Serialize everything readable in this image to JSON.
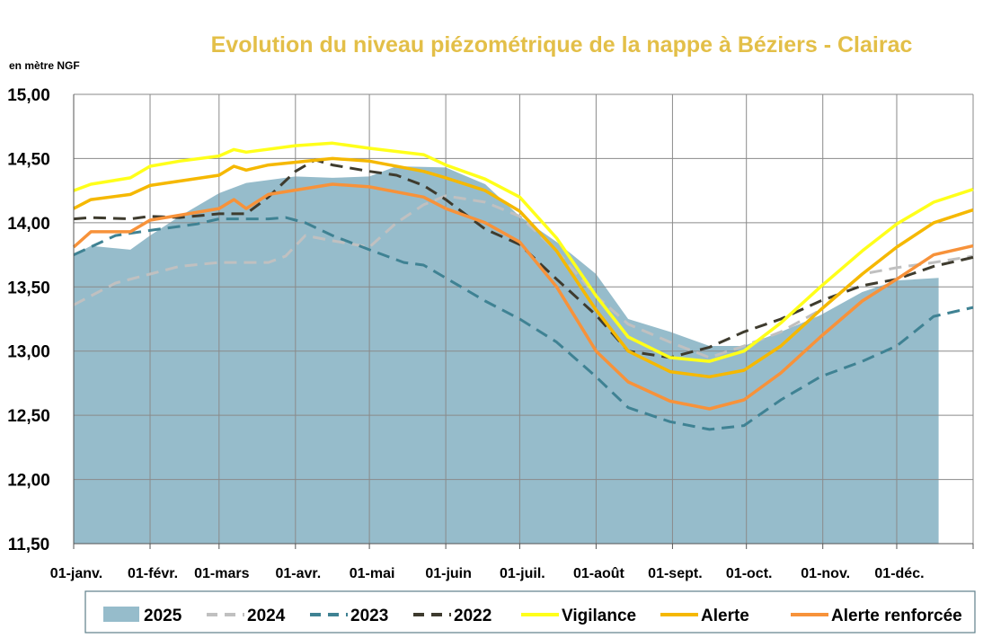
{
  "chart_data": {
    "type": "line",
    "title": "Evolution du niveau piézométrique de la nappe à Béziers  - Clairac",
    "ylabel": "en mètre NGF",
    "ylim": [
      11.5,
      15.0
    ],
    "xlim_days": [
      0,
      365
    ],
    "yticks": [
      "11,50",
      "12,00",
      "12,50",
      "13,00",
      "13,50",
      "14,00",
      "14,50",
      "15,00"
    ],
    "ytick_values": [
      11.5,
      12.0,
      12.5,
      13.0,
      13.5,
      14.0,
      14.5,
      15.0
    ],
    "xticks": [
      "01-janv.",
      "01-févr.",
      "01-mars",
      "01-avr.",
      "01-mai",
      "01-juin",
      "01-juil.",
      "01-août",
      "01-sept.",
      "01-oct.",
      "01-nov.",
      "01-déc."
    ],
    "xtick_days": [
      0,
      31,
      59,
      90,
      120,
      151,
      181,
      212,
      243,
      273,
      304,
      334
    ],
    "grid": true,
    "legend_position": "bottom",
    "series": [
      {
        "name": "2025",
        "kind": "area",
        "color": "#96BCCB",
        "points": [
          [
            0,
            13.75
          ],
          [
            7,
            13.82
          ],
          [
            23,
            13.79
          ],
          [
            31,
            13.9
          ],
          [
            43,
            14.05
          ],
          [
            59,
            14.23
          ],
          [
            70,
            14.31
          ],
          [
            90,
            14.36
          ],
          [
            105,
            14.35
          ],
          [
            120,
            14.36
          ],
          [
            131,
            14.44
          ],
          [
            151,
            14.43
          ],
          [
            167,
            14.3
          ],
          [
            181,
            14.05
          ],
          [
            196,
            13.85
          ],
          [
            212,
            13.6
          ],
          [
            225,
            13.25
          ],
          [
            242,
            13.15
          ],
          [
            258,
            13.04
          ],
          [
            272,
            13.04
          ],
          [
            287,
            13.15
          ],
          [
            303,
            13.28
          ],
          [
            320,
            13.46
          ],
          [
            334,
            13.55
          ],
          [
            351,
            13.57
          ]
        ]
      },
      {
        "name": "2024",
        "kind": "dash",
        "color": "#C0C0C0",
        "points": [
          [
            0,
            13.36
          ],
          [
            17,
            13.53
          ],
          [
            31,
            13.6
          ],
          [
            43,
            13.66
          ],
          [
            59,
            13.69
          ],
          [
            79,
            13.69
          ],
          [
            86,
            13.74
          ],
          [
            94,
            13.9
          ],
          [
            105,
            13.86
          ],
          [
            120,
            13.81
          ],
          [
            131,
            14.0
          ],
          [
            142,
            14.14
          ],
          [
            151,
            14.21
          ],
          [
            167,
            14.16
          ],
          [
            181,
            14.05
          ],
          [
            196,
            13.78
          ],
          [
            212,
            13.43
          ],
          [
            225,
            13.21
          ],
          [
            242,
            13.07
          ],
          [
            258,
            12.95
          ],
          [
            272,
            13.04
          ],
          [
            287,
            13.15
          ],
          [
            303,
            13.32
          ],
          [
            320,
            13.6
          ],
          [
            334,
            13.65
          ],
          [
            349,
            13.69
          ],
          [
            365,
            13.74
          ]
        ]
      },
      {
        "name": "2023",
        "kind": "dash",
        "color": "#3F8293",
        "points": [
          [
            0,
            13.75
          ],
          [
            17,
            13.9
          ],
          [
            31,
            13.94
          ],
          [
            50,
            13.99
          ],
          [
            59,
            14.03
          ],
          [
            79,
            14.03
          ],
          [
            86,
            14.04
          ],
          [
            94,
            14.0
          ],
          [
            105,
            13.9
          ],
          [
            120,
            13.79
          ],
          [
            134,
            13.69
          ],
          [
            142,
            13.67
          ],
          [
            151,
            13.57
          ],
          [
            167,
            13.39
          ],
          [
            181,
            13.25
          ],
          [
            196,
            13.07
          ],
          [
            212,
            12.8
          ],
          [
            225,
            12.56
          ],
          [
            242,
            12.45
          ],
          [
            258,
            12.39
          ],
          [
            272,
            12.42
          ],
          [
            287,
            12.62
          ],
          [
            303,
            12.8
          ],
          [
            320,
            12.92
          ],
          [
            334,
            13.04
          ],
          [
            349,
            13.27
          ],
          [
            365,
            13.34
          ]
        ]
      },
      {
        "name": "2022",
        "kind": "dash",
        "color": "#3E3B2E",
        "points": [
          [
            0,
            14.03
          ],
          [
            7,
            14.04
          ],
          [
            23,
            14.03
          ],
          [
            31,
            14.05
          ],
          [
            43,
            14.04
          ],
          [
            59,
            14.07
          ],
          [
            70,
            14.07
          ],
          [
            79,
            14.2
          ],
          [
            90,
            14.4
          ],
          [
            98,
            14.49
          ],
          [
            105,
            14.45
          ],
          [
            120,
            14.4
          ],
          [
            131,
            14.37
          ],
          [
            142,
            14.29
          ],
          [
            151,
            14.18
          ],
          [
            167,
            13.95
          ],
          [
            181,
            13.83
          ],
          [
            196,
            13.56
          ],
          [
            212,
            13.28
          ],
          [
            225,
            13.0
          ],
          [
            242,
            12.95
          ],
          [
            258,
            13.03
          ],
          [
            272,
            13.15
          ],
          [
            287,
            13.25
          ],
          [
            303,
            13.39
          ],
          [
            320,
            13.51
          ],
          [
            334,
            13.56
          ],
          [
            349,
            13.66
          ],
          [
            365,
            13.73
          ]
        ]
      },
      {
        "name": "Vigilance",
        "kind": "solid",
        "color": "#FFFF1A",
        "points": [
          [
            0,
            14.25
          ],
          [
            7,
            14.3
          ],
          [
            23,
            14.35
          ],
          [
            31,
            14.44
          ],
          [
            43,
            14.48
          ],
          [
            59,
            14.52
          ],
          [
            65,
            14.57
          ],
          [
            70,
            14.55
          ],
          [
            90,
            14.6
          ],
          [
            105,
            14.62
          ],
          [
            120,
            14.58
          ],
          [
            142,
            14.53
          ],
          [
            151,
            14.45
          ],
          [
            167,
            14.34
          ],
          [
            181,
            14.2
          ],
          [
            196,
            13.88
          ],
          [
            212,
            13.43
          ],
          [
            225,
            13.11
          ],
          [
            242,
            12.95
          ],
          [
            258,
            12.92
          ],
          [
            272,
            13.0
          ],
          [
            287,
            13.22
          ],
          [
            303,
            13.5
          ],
          [
            320,
            13.78
          ],
          [
            334,
            13.99
          ],
          [
            349,
            14.16
          ],
          [
            365,
            14.26
          ]
        ]
      },
      {
        "name": "Alerte",
        "kind": "solid",
        "color": "#F5B800",
        "points": [
          [
            0,
            14.11
          ],
          [
            7,
            14.18
          ],
          [
            23,
            14.22
          ],
          [
            31,
            14.29
          ],
          [
            59,
            14.37
          ],
          [
            65,
            14.44
          ],
          [
            70,
            14.41
          ],
          [
            79,
            14.45
          ],
          [
            105,
            14.5
          ],
          [
            120,
            14.48
          ],
          [
            142,
            14.4
          ],
          [
            151,
            14.35
          ],
          [
            167,
            14.25
          ],
          [
            181,
            14.09
          ],
          [
            196,
            13.78
          ],
          [
            212,
            13.32
          ],
          [
            225,
            13.0
          ],
          [
            242,
            12.84
          ],
          [
            258,
            12.8
          ],
          [
            272,
            12.85
          ],
          [
            287,
            13.04
          ],
          [
            303,
            13.32
          ],
          [
            320,
            13.6
          ],
          [
            334,
            13.81
          ],
          [
            349,
            14.0
          ],
          [
            365,
            14.1
          ]
        ]
      },
      {
        "name": "Alerte renforcée",
        "kind": "solid",
        "color": "#F7923A",
        "points": [
          [
            0,
            13.81
          ],
          [
            7,
            13.93
          ],
          [
            23,
            13.93
          ],
          [
            31,
            14.02
          ],
          [
            59,
            14.11
          ],
          [
            65,
            14.18
          ],
          [
            70,
            14.11
          ],
          [
            79,
            14.22
          ],
          [
            105,
            14.3
          ],
          [
            120,
            14.28
          ],
          [
            142,
            14.2
          ],
          [
            151,
            14.11
          ],
          [
            167,
            14.0
          ],
          [
            181,
            13.85
          ],
          [
            196,
            13.5
          ],
          [
            212,
            13.0
          ],
          [
            225,
            12.76
          ],
          [
            242,
            12.61
          ],
          [
            258,
            12.55
          ],
          [
            272,
            12.62
          ],
          [
            287,
            12.83
          ],
          [
            303,
            13.11
          ],
          [
            320,
            13.39
          ],
          [
            334,
            13.56
          ],
          [
            349,
            13.75
          ],
          [
            365,
            13.82
          ]
        ]
      }
    ]
  }
}
